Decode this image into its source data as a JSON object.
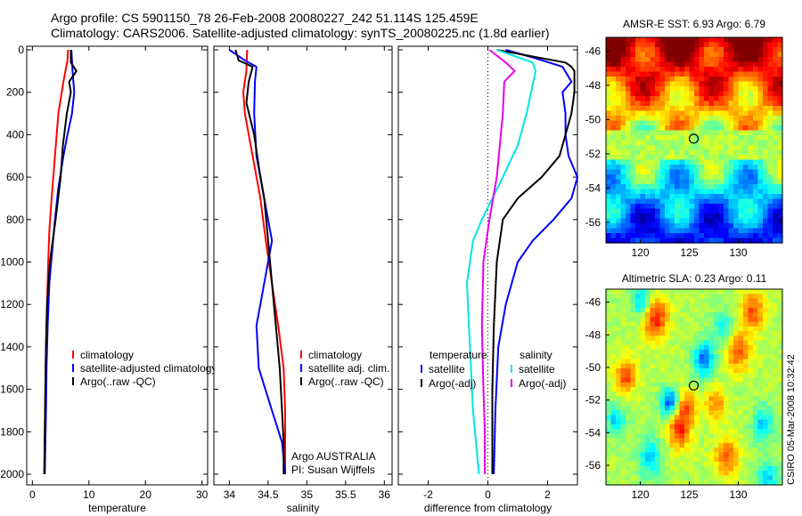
{
  "header": {
    "line1": "Argo profile: CS 5901150_78 26-Feb-2008 20080227_242 51.114S 125.459E",
    "line2": "Climatology: CARS2006. Satellite-adjusted climatology: synTS_20080225.nc (1.8d earlier)"
  },
  "side_text": {
    "stamp": "CSIRO 05-Mar-2008 10:32:42"
  },
  "colors": {
    "climatology": "#ff0000",
    "satellite": "#0000ff",
    "argo": "#000000",
    "temp_satellite_diff": "#00e5e5",
    "salinity_argo_diff": "#e600e6"
  },
  "chart_data": [
    {
      "type": "line",
      "name": "temperature-profile",
      "xlabel": "temperature",
      "ylabel": "",
      "xlim": [
        -1,
        31
      ],
      "ylim": [
        2050,
        0
      ],
      "xticks": [
        0,
        10,
        20,
        30
      ],
      "yticks": [
        0,
        200,
        400,
        600,
        800,
        1000,
        1200,
        1400,
        1600,
        1800,
        2000
      ],
      "legend": [
        {
          "label": "climatology",
          "color": "#ff0000"
        },
        {
          "label": "satellite-adjusted climatology",
          "color": "#0000ff"
        },
        {
          "label": "Argo(..raw -QC)",
          "color": "#000000"
        }
      ],
      "series": [
        {
          "name": "climatology",
          "color": "#ff0000",
          "x": [
            6.3,
            6.2,
            5.5,
            4.6,
            4.0,
            3.4,
            3.0,
            2.8,
            2.6,
            2.4,
            2.3,
            2.2,
            2.1
          ],
          "y": [
            0,
            50,
            150,
            300,
            500,
            700,
            850,
            1000,
            1200,
            1400,
            1600,
            1800,
            2000
          ]
        },
        {
          "name": "satellite-adjusted climatology",
          "color": "#0000ff",
          "x": [
            6.9,
            7.0,
            7.1,
            7.4,
            7.0,
            6.2,
            5.5,
            4.6,
            4.0,
            3.5,
            3.0,
            2.7,
            2.5,
            2.4,
            2.3,
            2.2
          ],
          "y": [
            0,
            50,
            100,
            200,
            300,
            400,
            500,
            650,
            800,
            950,
            1100,
            1300,
            1500,
            1700,
            1850,
            2000
          ]
        },
        {
          "name": "Argo(..raw -QC)",
          "color": "#000000",
          "x": [
            6.8,
            6.8,
            7.8,
            6.5,
            6.8,
            6.1,
            5.4,
            5.0,
            4.1,
            3.6,
            3.1,
            2.6,
            2.4,
            2.3,
            2.2,
            2.1
          ],
          "y": [
            0,
            60,
            100,
            150,
            200,
            300,
            450,
            600,
            800,
            900,
            1000,
            1200,
            1400,
            1600,
            1800,
            2000
          ]
        }
      ]
    },
    {
      "type": "line",
      "name": "salinity-profile",
      "xlabel": "salinity",
      "ylabel": "",
      "xlim": [
        33.8,
        36.1
      ],
      "ylim": [
        2050,
        0
      ],
      "xticks": [
        34,
        34.5,
        35,
        35.5,
        36
      ],
      "legend": [
        {
          "label": "climatology",
          "color": "#ff0000"
        },
        {
          "label": "satellite adj. clim.",
          "color": "#0000ff"
        },
        {
          "label": "Argo(..raw -QC)",
          "color": "#000000"
        }
      ],
      "annotations": [
        "Argo AUSTRALIA",
        "PI: Susan Wijffels"
      ],
      "series": [
        {
          "name": "climatology",
          "color": "#ff0000",
          "x": [
            34.23,
            34.22,
            34.18,
            34.2,
            34.3,
            34.4,
            34.47,
            34.55,
            34.63,
            34.7,
            34.72,
            34.72,
            34.72
          ],
          "y": [
            0,
            100,
            200,
            300,
            500,
            700,
            900,
            1100,
            1300,
            1500,
            1700,
            1850,
            2000
          ]
        },
        {
          "name": "satellite adj. clim.",
          "color": "#0000ff",
          "x": [
            34.0,
            34.2,
            34.35,
            34.33,
            34.32,
            34.35,
            34.45,
            34.55,
            34.45,
            34.35,
            34.38,
            34.55,
            34.68,
            34.72
          ],
          "y": [
            0,
            50,
            80,
            150,
            300,
            500,
            700,
            900,
            1100,
            1300,
            1500,
            1700,
            1850,
            2000
          ]
        },
        {
          "name": "Argo(..raw -QC)",
          "color": "#000000",
          "x": [
            34.08,
            34.12,
            34.3,
            34.25,
            34.22,
            34.32,
            34.38,
            34.45,
            34.5,
            34.55,
            34.6,
            34.65,
            34.68,
            34.7,
            34.7
          ],
          "y": [
            0,
            50,
            80,
            150,
            250,
            400,
            550,
            700,
            900,
            1100,
            1300,
            1500,
            1700,
            1850,
            2000
          ]
        }
      ]
    },
    {
      "type": "line",
      "name": "difference-from-climatology",
      "xlabel": "difference from climatology",
      "ylabel": "",
      "xlim": [
        -3,
        3
      ],
      "ylim": [
        2050,
        0
      ],
      "xticks": [
        -2,
        0,
        2
      ],
      "legend": [
        {
          "group": "temperature",
          "label": "satellite",
          "color": "#0000ff"
        },
        {
          "group": "temperature",
          "label": "Argo(-adj)",
          "color": "#000000"
        },
        {
          "group": "salinity",
          "label": "satellite",
          "color": "#00e5e5"
        },
        {
          "group": "salinity",
          "label": "Argo(-adj)",
          "color": "#e600e6"
        }
      ],
      "series": [
        {
          "name": "temperature satellite",
          "color": "#0000ff",
          "x": [
            0.6,
            1.6,
            2.5,
            2.8,
            2.5,
            2.6,
            2.6,
            2.7,
            3.0,
            2.8,
            2.2,
            1.5,
            1.0,
            0.6,
            0.35,
            0.25,
            0.2
          ],
          "y": [
            0,
            40,
            80,
            150,
            200,
            300,
            400,
            500,
            600,
            700,
            800,
            900,
            1000,
            1200,
            1400,
            1700,
            2000
          ]
        },
        {
          "name": "temperature Argo(-adj)",
          "color": "#000000",
          "x": [
            0.3,
            2.6,
            2.8,
            2.9,
            2.9,
            2.8,
            2.6,
            2.4,
            1.8,
            1.0,
            0.5,
            0.3,
            0.2,
            0.15,
            0.15
          ],
          "y": [
            0,
            60,
            80,
            100,
            200,
            300,
            400,
            500,
            600,
            700,
            800,
            1000,
            1300,
            1600,
            2000
          ]
        },
        {
          "name": "salinity satellite",
          "color": "#00e5e5",
          "x": [
            0.3,
            1.5,
            1.6,
            1.3,
            1.0,
            0.5,
            -0.2,
            -0.5,
            -0.7,
            -0.6,
            -0.5,
            -0.3
          ],
          "y": [
            0,
            60,
            100,
            300,
            450,
            600,
            800,
            900,
            1100,
            1400,
            1700,
            2000
          ]
        },
        {
          "name": "salinity Argo(-adj)",
          "color": "#e600e6",
          "x": [
            0.05,
            0.6,
            0.9,
            0.55,
            0.5,
            0.3,
            0.05,
            -0.15,
            -0.2,
            -0.15,
            -0.1,
            -0.1
          ],
          "y": [
            0,
            60,
            100,
            150,
            300,
            600,
            800,
            1000,
            1300,
            1600,
            1800,
            2000
          ]
        }
      ]
    },
    {
      "type": "heatmap",
      "name": "sst-map",
      "title": "AMSR-E SST: 6.93 Argo: 6.79",
      "xlim": [
        116.5,
        134.5
      ],
      "ylim": [
        -57.2,
        -45.2
      ],
      "xticks": [
        120,
        125,
        130
      ],
      "yticks": [
        -46,
        -48,
        -50,
        -52,
        -54,
        -56
      ],
      "marker": {
        "lon": 125.459,
        "lat": -51.114
      }
    },
    {
      "type": "heatmap",
      "name": "sla-map",
      "title": "Altimetric SLA: 0.23 Argo: 0.11",
      "xlim": [
        116.5,
        134.5
      ],
      "ylim": [
        -57.2,
        -45.2
      ],
      "xticks": [
        120,
        125,
        130
      ],
      "yticks": [
        -46,
        -48,
        -50,
        -52,
        -54,
        -56
      ],
      "marker": {
        "lon": 125.459,
        "lat": -51.114
      }
    }
  ]
}
